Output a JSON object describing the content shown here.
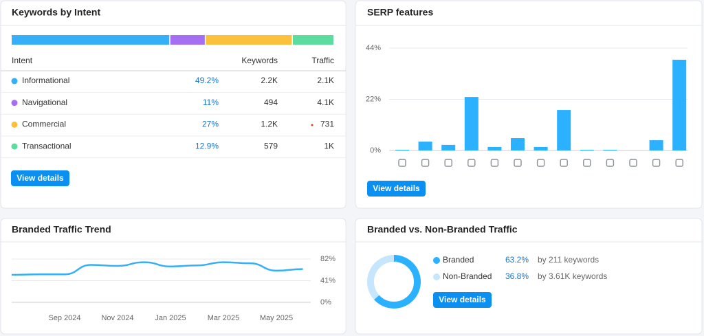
{
  "intent": {
    "title": "Keywords by Intent",
    "columns": [
      "Intent",
      "Keywords",
      "Traffic"
    ],
    "names": [
      "Informational",
      "Navigational",
      "Commercial",
      "Transactional"
    ],
    "colors": [
      "#35b0f8",
      "#a66ef2",
      "#fcc13c",
      "#5cdc9f"
    ],
    "values": [
      49.2,
      11,
      27,
      12.9
    ],
    "value_labels": [
      "49.2%",
      "11%",
      "27%",
      "12.9%"
    ],
    "keywords": [
      "2.2K",
      "494",
      "1.2K",
      "579"
    ],
    "traffic": [
      "2.1K",
      "4.1K",
      "731",
      "1K"
    ],
    "button": "View details"
  },
  "serp": {
    "title": "SERP features",
    "type": "bar",
    "values": [
      0.3,
      3.8,
      2.4,
      23,
      1.5,
      5.3,
      1.5,
      17.4,
      0.3,
      0.3,
      0,
      4.4,
      39
    ],
    "color": "#2bb1ff",
    "ylim": [
      0,
      44
    ],
    "yticks": [
      {
        "value": 0,
        "label": "0%"
      },
      {
        "value": 22,
        "label": "22%"
      },
      {
        "value": 44,
        "label": "44%"
      }
    ],
    "grid": true,
    "button": "View details"
  },
  "trend": {
    "title": "Branded Traffic Trend",
    "type": "line",
    "categories": [
      null,
      null,
      "Sep 2024",
      null,
      "Nov 2024",
      null,
      "Jan 2025",
      null,
      "Mar 2025",
      null,
      "May 2025",
      null
    ],
    "values": [
      52,
      53,
      53,
      71,
      69,
      76,
      68,
      70,
      76,
      74,
      60,
      63
    ],
    "color": "#35b0f8",
    "ylim": [
      0,
      82
    ],
    "yticks": [
      {
        "value": 0,
        "label": "0%"
      },
      {
        "value": 41,
        "label": "41%"
      },
      {
        "value": 82,
        "label": "82%"
      }
    ],
    "grid": true
  },
  "branded": {
    "title": "Branded vs. Non-Branded Traffic",
    "type": "pie",
    "names": [
      "Branded",
      "Non-Branded"
    ],
    "colors": [
      "#2bb1ff",
      "#c5e6fc"
    ],
    "values": [
      63.2,
      36.8
    ],
    "value_labels": [
      "63.2%",
      "36.8%"
    ],
    "details": [
      "by 211 keywords",
      "by 3.61K keywords"
    ],
    "button": "View details"
  }
}
